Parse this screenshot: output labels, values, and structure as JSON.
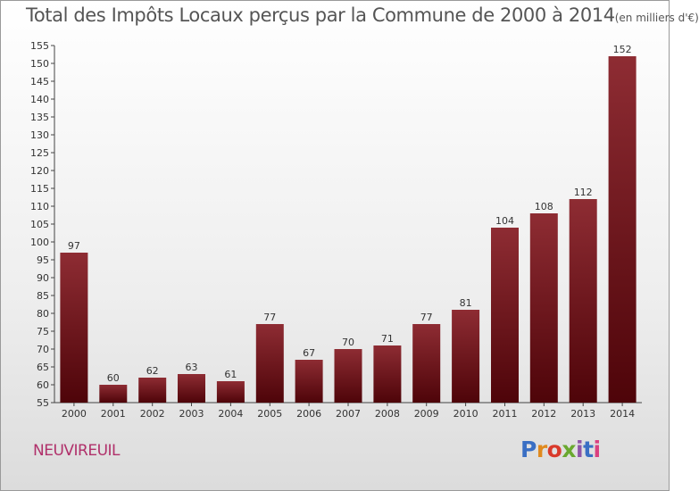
{
  "title": "Total des Impôts Locaux perçus par la Commune de 2000 à 2014",
  "title_unit": "(en milliers d'€)",
  "commune": "NEUVIREUIL",
  "logo": {
    "text": "Proxiti",
    "colors": [
      "#3a6fc4",
      "#e08a1e",
      "#d93a2b",
      "#6aa82f",
      "#8e55a8",
      "#3a6fc4",
      "#d94080"
    ]
  },
  "chart_data": {
    "type": "bar",
    "title": "Total des Impôts Locaux perçus par la Commune de 2000 à 2014 (en milliers d'€)",
    "xlabel": "",
    "ylabel": "",
    "categories": [
      "2000",
      "2001",
      "2002",
      "2003",
      "2004",
      "2005",
      "2006",
      "2007",
      "2008",
      "2009",
      "2010",
      "2011",
      "2012",
      "2013",
      "2014"
    ],
    "values": [
      97,
      60,
      62,
      63,
      61,
      77,
      67,
      70,
      71,
      77,
      81,
      104,
      108,
      112,
      152
    ],
    "ylim": [
      55,
      155
    ],
    "yticks": [
      55,
      60,
      65,
      70,
      75,
      80,
      85,
      90,
      95,
      100,
      105,
      110,
      115,
      120,
      125,
      130,
      135,
      140,
      145,
      150,
      155
    ],
    "bar_color": "#7a1a22",
    "grid": false
  }
}
